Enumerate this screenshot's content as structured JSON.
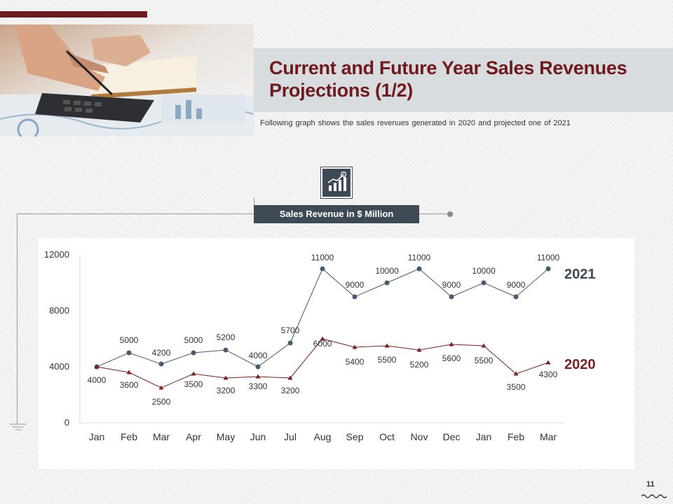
{
  "slide": {
    "title_line1": "Current and Future Year Sales Revenues",
    "title_line2": "Projections (1/2)",
    "subtitle": "Following graph shows the sales revenues generated in 2020 and projected one of 2021",
    "chart_label": "Sales Revenue in $ Million",
    "page_number": "11",
    "icon": "growth-chart-icon"
  },
  "colors": {
    "accent": "#6e1a1f",
    "slate": "#3d4a55",
    "series_2021": "#4a5a68",
    "series_2020": "#7a1f1f"
  },
  "chart_data": {
    "type": "line",
    "title": "Sales Revenue in $ Million",
    "categories": [
      "Jan",
      "Feb",
      "Mar",
      "Apr",
      "May",
      "Jun",
      "Jul",
      "Aug",
      "Sep",
      "Oct",
      "Nov",
      "Dec",
      "Jan",
      "Feb",
      "Mar"
    ],
    "ylim": [
      0,
      12000
    ],
    "yticks": [
      0,
      4000,
      8000,
      12000
    ],
    "grid": false,
    "series": [
      {
        "name": "2021",
        "color": "#4a5a68",
        "marker": "circle",
        "values": [
          4000,
          5000,
          4200,
          5000,
          5200,
          4000,
          5700,
          11000,
          9000,
          10000,
          11000,
          9000,
          10000,
          9000,
          11000
        ]
      },
      {
        "name": "2020",
        "color": "#7a1f1f",
        "marker": "triangle",
        "values": [
          4000,
          3600,
          2500,
          3500,
          3200,
          3300,
          3200,
          6000,
          5400,
          5500,
          5200,
          5600,
          5500,
          3500,
          4300
        ]
      }
    ]
  }
}
